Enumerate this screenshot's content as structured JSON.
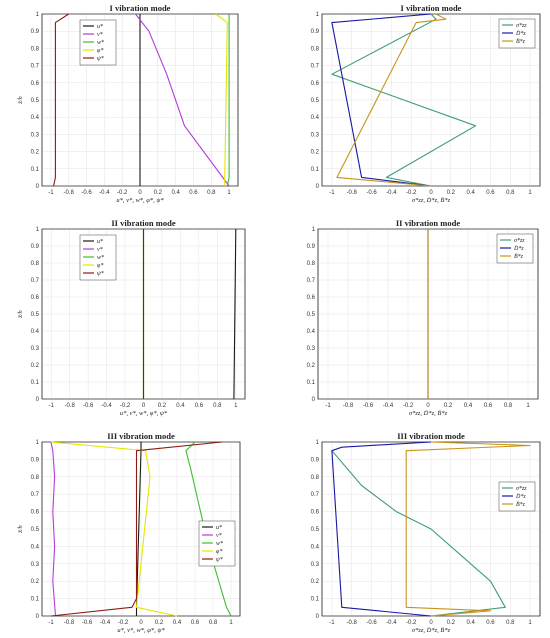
{
  "colors": {
    "black": "#1a1a1a",
    "magenta": "#b23be0",
    "green": "#3cbf2e",
    "yellow": "#e6e600",
    "brown": "#8b1a0f",
    "teal": "#3f9f70",
    "blue": "#1818a8",
    "gold": "#c8941a"
  },
  "chart_data": [
    {
      "type": "line",
      "title": "I vibration mode",
      "xlabel": "u*, v*, w*, φ*, ψ*",
      "ylabel": "z̄/h",
      "xlim": [
        -1.1,
        1.1
      ],
      "ylim": [
        0,
        1
      ],
      "xticks": [
        "-1",
        "-0.8",
        "-0.6",
        "-0.4",
        "-0.2",
        "0",
        "0.2",
        "0.4",
        "0.6",
        "0.8",
        "1"
      ],
      "yticks": [
        "0",
        "0.1",
        "0.2",
        "0.3",
        "0.4",
        "0.5",
        "0.6",
        "0.7",
        "0.8",
        "0.9",
        "1"
      ],
      "grid": true,
      "legend": "top-left",
      "series": [
        {
          "name": "u*",
          "color": "black",
          "x": [
            0,
            0
          ],
          "y": [
            0,
            1
          ]
        },
        {
          "name": "v*",
          "color": "magenta",
          "x": [
            1,
            0.5,
            0.3,
            0.1,
            -0.05
          ],
          "y": [
            0,
            0.35,
            0.65,
            0.9,
            1
          ]
        },
        {
          "name": "w*",
          "color": "green",
          "x": [
            0.98,
            1,
            1
          ],
          "y": [
            0,
            0.05,
            1
          ]
        },
        {
          "name": "φ*",
          "color": "yellow",
          "x": [
            0.95,
            0.98,
            0.85
          ],
          "y": [
            0,
            0.95,
            1
          ]
        },
        {
          "name": "ψ*",
          "color": "brown",
          "x": [
            -0.97,
            -0.95,
            -0.95,
            -0.8
          ],
          "y": [
            0,
            0.05,
            0.95,
            1
          ]
        }
      ]
    },
    {
      "type": "line",
      "title": "I vibration mode",
      "xlabel": "σ*zz, D̄*z, B̄*z",
      "ylabel": "",
      "xlim": [
        -1.1,
        1.1
      ],
      "ylim": [
        0,
        1
      ],
      "xticks": [
        "-1",
        "-0.8",
        "-0.6",
        "-0.4",
        "-0.2",
        "0",
        "0.2",
        "0.4",
        "0.6",
        "0.8",
        "1"
      ],
      "yticks": [
        "0",
        "0.1",
        "0.2",
        "0.3",
        "0.4",
        "0.5",
        "0.6",
        "0.7",
        "0.8",
        "0.9",
        "1"
      ],
      "grid": true,
      "legend": "top-right",
      "series": [
        {
          "name": "σ*zz",
          "color": "teal",
          "x": [
            0,
            -0.45,
            0.45,
            -1,
            0.05,
            0
          ],
          "y": [
            0,
            0.05,
            0.35,
            0.65,
            0.97,
            1
          ]
        },
        {
          "name": "D̄*z",
          "color": "blue",
          "x": [
            0,
            -0.7,
            -1,
            0
          ],
          "y": [
            0,
            0.05,
            0.95,
            1
          ]
        },
        {
          "name": "B̄*z",
          "color": "gold",
          "x": [
            0,
            -0.95,
            -0.15,
            0.15,
            0.05
          ],
          "y": [
            0,
            0.05,
            0.95,
            0.97,
            1
          ]
        }
      ]
    },
    {
      "type": "line",
      "title": "II vibration mode",
      "xlabel": "u*, v*, w*, φ*, ψ*",
      "ylabel": "z̄/h",
      "xlim": [
        -1.1,
        1.1
      ],
      "ylim": [
        0,
        1
      ],
      "xticks": [
        "-1",
        "-0.8",
        "-0.6",
        "-0.4",
        "-0.2",
        "0",
        "0.2",
        "0.4",
        "0.6",
        "0.8",
        "1"
      ],
      "yticks": [
        "0",
        "0.1",
        "0.2",
        "0.3",
        "0.4",
        "0.5",
        "0.6",
        "0.7",
        "0.8",
        "0.9",
        "1"
      ],
      "grid": true,
      "legend": "top-left",
      "series": [
        {
          "name": "u*",
          "color": "black",
          "x": [
            0.98,
            1.0
          ],
          "y": [
            0,
            1
          ]
        },
        {
          "name": "v*",
          "color": "magenta",
          "x": [
            0,
            0
          ],
          "y": [
            0,
            1
          ]
        },
        {
          "name": "w*",
          "color": "green",
          "x": [
            0,
            0
          ],
          "y": [
            0,
            1
          ]
        },
        {
          "name": "φ*",
          "color": "yellow",
          "x": [
            0,
            0
          ],
          "y": [
            0,
            1
          ]
        },
        {
          "name": "ψ*",
          "color": "brown",
          "x": [
            0,
            0
          ],
          "y": [
            0,
            1
          ]
        }
      ]
    },
    {
      "type": "line",
      "title": "II vibration mode",
      "xlabel": "σ*zz, D̄*z, B̄*z",
      "ylabel": "",
      "xlim": [
        -1.1,
        1.1
      ],
      "ylim": [
        0,
        1
      ],
      "xticks": [
        "-1",
        "-0.8",
        "-0.6",
        "-0.4",
        "-0.2",
        "0",
        "0.2",
        "0.4",
        "0.6",
        "0.8",
        "1"
      ],
      "yticks": [
        "0",
        "0.1",
        "0.2",
        "0.3",
        "0.4",
        "0.5",
        "0.6",
        "0.7",
        "0.8",
        "0.9",
        "1"
      ],
      "grid": true,
      "legend": "top-right",
      "series": [
        {
          "name": "σ*zz",
          "color": "teal",
          "x": [
            0,
            0
          ],
          "y": [
            0,
            1
          ]
        },
        {
          "name": "D̄*z",
          "color": "blue",
          "x": [
            0,
            0
          ],
          "y": [
            0,
            1
          ]
        },
        {
          "name": "B̄*z",
          "color": "gold",
          "x": [
            0,
            0
          ],
          "y": [
            0,
            1
          ]
        }
      ]
    },
    {
      "type": "line",
      "title": "III vibration mode",
      "xlabel": "u*, v*, w*, φ*, ψ*",
      "ylabel": "z̄/h",
      "xlim": [
        -1.1,
        1.1
      ],
      "ylim": [
        0,
        1
      ],
      "xticks": [
        "-1",
        "-0.8",
        "-0.6",
        "-0.4",
        "-0.2",
        "0",
        "0.2",
        "0.4",
        "0.6",
        "0.8",
        "1"
      ],
      "yticks": [
        "0",
        "0.1",
        "0.2",
        "0.3",
        "0.4",
        "0.5",
        "0.6",
        "0.7",
        "0.8",
        "0.9",
        "1"
      ],
      "grid": true,
      "legend": "bottom-right",
      "series": [
        {
          "name": "u*",
          "color": "black",
          "x": [
            -0.05,
            -0.05,
            0,
            0
          ],
          "y": [
            0,
            0.05,
            0.95,
            1
          ]
        },
        {
          "name": "v*",
          "color": "magenta",
          "x": [
            -0.95,
            -0.98,
            -0.96,
            -0.98,
            -0.96,
            -0.98,
            -1
          ],
          "y": [
            0,
            0.2,
            0.4,
            0.6,
            0.8,
            0.95,
            1
          ]
        },
        {
          "name": "w*",
          "color": "green",
          "x": [
            1,
            0.95,
            0.75,
            0.55,
            0.5,
            0.6
          ],
          "y": [
            0,
            0.05,
            0.4,
            0.85,
            0.95,
            1
          ]
        },
        {
          "name": "φ*",
          "color": "yellow",
          "x": [
            0.4,
            -0.05,
            0.1,
            0.05,
            -1
          ],
          "y": [
            0,
            0.05,
            0.8,
            0.95,
            1
          ]
        },
        {
          "name": "ψ*",
          "color": "brown",
          "x": [
            -1,
            -0.1,
            -0.05,
            -0.05,
            0.9
          ],
          "y": [
            0,
            0.05,
            0.1,
            0.95,
            1
          ]
        }
      ]
    },
    {
      "type": "line",
      "title": "III vibration mode",
      "xlabel": "σ*zz, D̄*z, B̄*z",
      "ylabel": "",
      "xlim": [
        -1.1,
        1.1
      ],
      "ylim": [
        0,
        1
      ],
      "xticks": [
        "-1",
        "-0.8",
        "-0.6",
        "-0.4",
        "-0.2",
        "0",
        "0.2",
        "0.4",
        "0.6",
        "0.8",
        "1"
      ],
      "yticks": [
        "0",
        "0.1",
        "0.2",
        "0.3",
        "0.4",
        "0.5",
        "0.6",
        "0.7",
        "0.8",
        "0.9",
        "1"
      ],
      "grid": true,
      "legend": "middle-right",
      "series": [
        {
          "name": "σ*zz",
          "color": "teal",
          "x": [
            0,
            0.75,
            0.6,
            0.3,
            0,
            -0.35,
            -0.7,
            -1
          ],
          "y": [
            0,
            0.05,
            0.2,
            0.35,
            0.5,
            0.6,
            0.75,
            0.95
          ]
        },
        {
          "name": "D̄*z",
          "color": "blue",
          "x": [
            0,
            -0.9,
            -1,
            -0.9,
            0
          ],
          "y": [
            0,
            0.05,
            0.95,
            0.97,
            1
          ]
        },
        {
          "name": "B̄*z",
          "color": "gold",
          "x": [
            0,
            0.6,
            -0.25,
            -0.25,
            1,
            0
          ],
          "y": [
            0,
            0.03,
            0.05,
            0.95,
            0.98,
            1
          ]
        }
      ]
    }
  ]
}
